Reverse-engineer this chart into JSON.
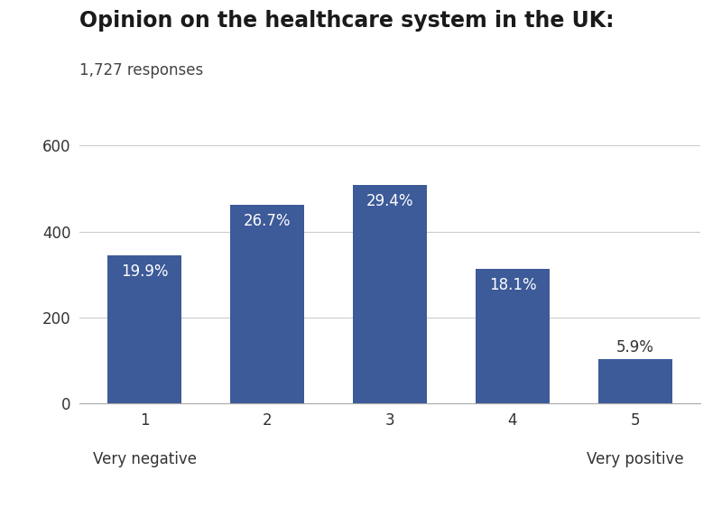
{
  "title": "Opinion on the healthcare system in the UK:",
  "subtitle": "1,727 responses",
  "categories": [
    "1",
    "2",
    "3",
    "4",
    "5"
  ],
  "values": [
    344,
    461,
    508,
    313,
    102
  ],
  "percentages": [
    "19.9%",
    "26.7%",
    "29.4%",
    "18.1%",
    "5.9%"
  ],
  "bar_color": "#3d5a99",
  "background_color": "#ffffff",
  "xlabel_left": "Very negative",
  "xlabel_right": "Very positive",
  "ylim": [
    0,
    650
  ],
  "yticks": [
    0,
    200,
    400,
    600
  ],
  "title_fontsize": 17,
  "subtitle_fontsize": 12,
  "label_fontsize": 12,
  "tick_fontsize": 12,
  "annotation_fontsize": 12
}
